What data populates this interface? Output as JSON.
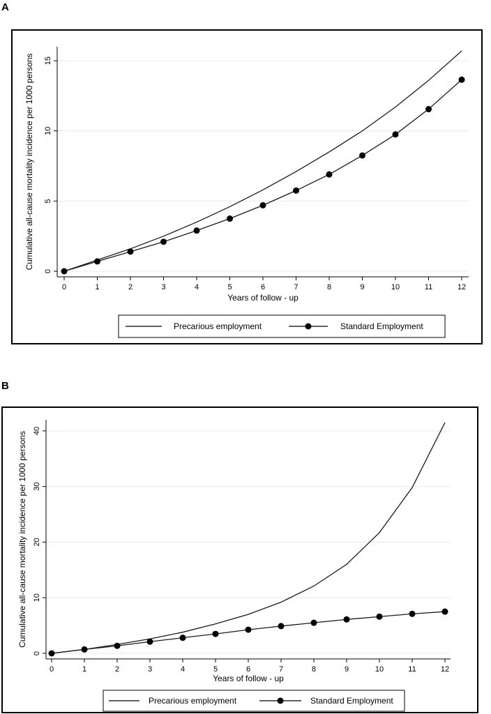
{
  "panels": [
    {
      "letter": "A"
    },
    {
      "letter": "B"
    }
  ],
  "chart_data": [
    {
      "panel": "A",
      "type": "line",
      "xlabel": "Years of follow - up",
      "ylabel": "Cumulative all-cause mortality incidence per 1000 persons",
      "x": [
        0,
        1,
        2,
        3,
        4,
        5,
        6,
        7,
        8,
        9,
        10,
        11,
        12
      ],
      "xlim": [
        0,
        12
      ],
      "ylim": [
        0,
        16
      ],
      "yticks": [
        0,
        5,
        10,
        15
      ],
      "grid": "horizontal",
      "legend_position": "bottom",
      "series": [
        {
          "name": "Precarious employment",
          "marker": "none",
          "values": [
            0,
            0.8,
            1.6,
            2.5,
            3.5,
            4.6,
            5.8,
            7.1,
            8.5,
            10.0,
            11.7,
            13.6,
            15.7
          ]
        },
        {
          "name": "Standard Employment",
          "marker": "filled-circle",
          "values": [
            0,
            0.7,
            1.4,
            2.1,
            2.9,
            3.75,
            4.7,
            5.75,
            6.9,
            8.25,
            9.75,
            11.55,
            13.65
          ]
        }
      ]
    },
    {
      "panel": "B",
      "type": "line",
      "xlabel": "Years of follow - up",
      "ylabel": "Cumulative all-cause mortality incidence per 1000 persons",
      "x": [
        0,
        1,
        2,
        3,
        4,
        5,
        6,
        7,
        8,
        9,
        10,
        11,
        12
      ],
      "xlim": [
        0,
        12
      ],
      "ylim": [
        0,
        42
      ],
      "yticks": [
        0,
        10,
        20,
        30,
        40
      ],
      "grid": "horizontal",
      "legend_position": "bottom",
      "series": [
        {
          "name": "Precarious employment",
          "marker": "none",
          "values": [
            0,
            0.7,
            1.6,
            2.6,
            3.8,
            5.3,
            7.0,
            9.2,
            12.1,
            16.0,
            21.7,
            29.8,
            41.5
          ]
        },
        {
          "name": "Standard Employment",
          "marker": "filled-circle",
          "values": [
            0,
            0.7,
            1.35,
            2.1,
            2.8,
            3.5,
            4.25,
            4.9,
            5.5,
            6.1,
            6.6,
            7.1,
            7.5
          ]
        }
      ]
    }
  ]
}
